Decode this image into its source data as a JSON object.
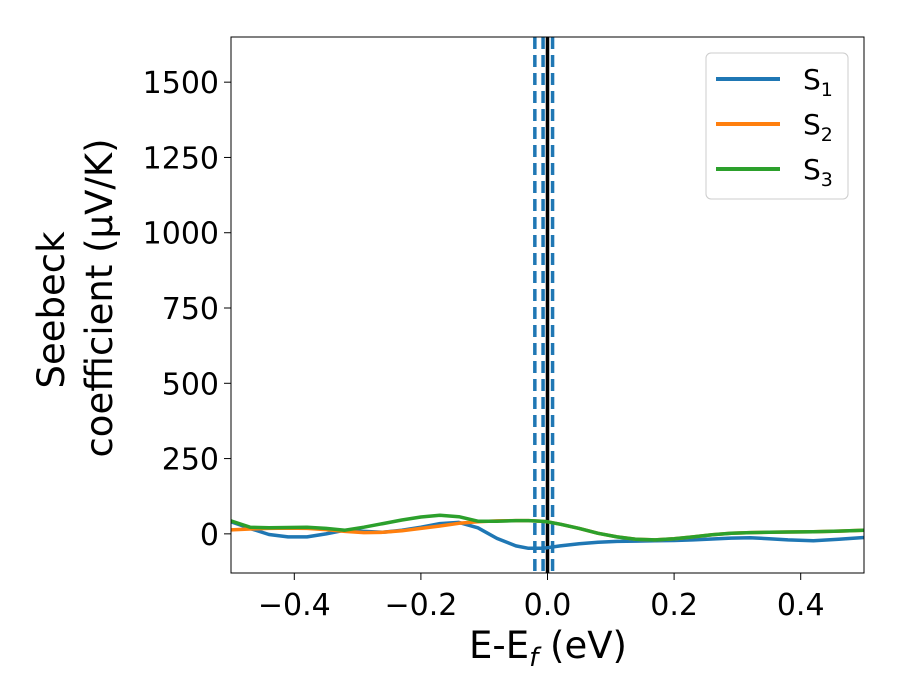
{
  "chart_data": {
    "type": "line",
    "title": "",
    "xlabel": "E-E",
    "xlabel_sub": "f",
    "xlabel_unit": " (eV)",
    "ylabel_line1": "Seebeck",
    "ylabel_line2": "coefficient  (μV/K)",
    "xlim": [
      -0.5,
      0.5
    ],
    "ylim": [
      -130,
      1650
    ],
    "xticks": [
      -0.4,
      -0.2,
      0.0,
      0.2,
      0.4
    ],
    "xtick_labels": [
      "−0.4",
      "−0.2",
      "0.0",
      "0.2",
      "0.4"
    ],
    "yticks": [
      0,
      250,
      500,
      750,
      1000,
      1250,
      1500
    ],
    "ytick_labels": [
      "0",
      "250",
      "500",
      "750",
      "1000",
      "1250",
      "1500"
    ],
    "grid": false,
    "legend_position": "top-right",
    "vlines": [
      {
        "x": 0.0,
        "style": "solid",
        "color": "#000000"
      },
      {
        "x": -0.02,
        "style": "dashed",
        "color": "#1f77b4"
      },
      {
        "x": -0.007,
        "style": "dashed",
        "color": "#1f77b4"
      },
      {
        "x": 0.008,
        "style": "dashed",
        "color": "#1f77b4"
      }
    ],
    "series": [
      {
        "name": "S",
        "name_sub": "1",
        "color": "#1f77b4",
        "x": [
          -0.5,
          -0.47,
          -0.44,
          -0.41,
          -0.38,
          -0.35,
          -0.32,
          -0.29,
          -0.26,
          -0.23,
          -0.2,
          -0.17,
          -0.14,
          -0.11,
          -0.08,
          -0.05,
          -0.03,
          -0.01,
          0.0,
          0.02,
          0.05,
          0.08,
          0.11,
          0.14,
          0.17,
          0.2,
          0.23,
          0.26,
          0.29,
          0.32,
          0.35,
          0.38,
          0.42,
          0.46,
          0.5
        ],
        "y": [
          40,
          18,
          -2,
          -10,
          -10,
          0,
          12,
          8,
          5,
          12,
          22,
          34,
          38,
          20,
          -15,
          -40,
          -48,
          -48,
          -46,
          -40,
          -33,
          -28,
          -25,
          -24,
          -23,
          -22,
          -20,
          -17,
          -14,
          -13,
          -16,
          -20,
          -23,
          -18,
          -12
        ]
      },
      {
        "name": "S",
        "name_sub": "2",
        "color": "#ff7f0e",
        "x": [
          -0.5,
          -0.47,
          -0.44,
          -0.41,
          -0.38,
          -0.35,
          -0.32,
          -0.29,
          -0.26,
          -0.23,
          -0.2,
          -0.17,
          -0.14,
          -0.11,
          -0.08,
          -0.05,
          -0.03,
          -0.01,
          0.0,
          0.02,
          0.05,
          0.08,
          0.11,
          0.14,
          0.17,
          0.2,
          0.23,
          0.26,
          0.29,
          0.32,
          0.35,
          0.38,
          0.42,
          0.46,
          0.5
        ],
        "y": [
          13,
          16,
          18,
          19,
          18,
          14,
          8,
          4,
          5,
          10,
          18,
          26,
          35,
          40,
          43,
          44,
          44,
          42,
          40,
          32,
          18,
          2,
          -10,
          -18,
          -20,
          -16,
          -10,
          -3,
          2,
          4,
          5,
          6,
          7,
          9,
          12
        ]
      },
      {
        "name": "S",
        "name_sub": "3",
        "color": "#2ca02c",
        "x": [
          -0.5,
          -0.47,
          -0.44,
          -0.41,
          -0.38,
          -0.35,
          -0.32,
          -0.29,
          -0.26,
          -0.23,
          -0.2,
          -0.17,
          -0.14,
          -0.11,
          -0.08,
          -0.05,
          -0.03,
          -0.01,
          0.0,
          0.02,
          0.05,
          0.08,
          0.11,
          0.14,
          0.17,
          0.2,
          0.23,
          0.26,
          0.29,
          0.32,
          0.35,
          0.38,
          0.42,
          0.46,
          0.5
        ],
        "y": [
          43,
          22,
          20,
          21,
          22,
          18,
          12,
          22,
          34,
          46,
          56,
          62,
          57,
          42,
          42,
          44,
          44,
          42,
          40,
          32,
          18,
          2,
          -10,
          -18,
          -20,
          -16,
          -10,
          -3,
          2,
          4,
          5,
          6,
          7,
          9,
          12
        ]
      }
    ]
  }
}
